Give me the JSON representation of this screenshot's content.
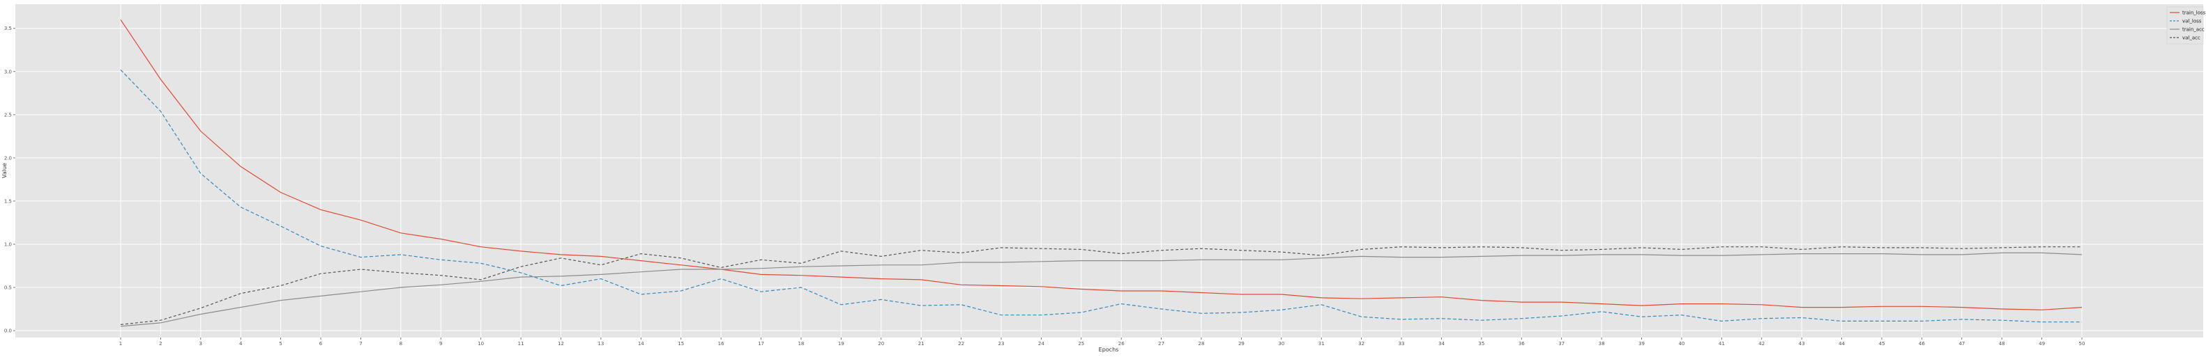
{
  "chart_data": {
    "type": "line",
    "title": "",
    "xlabel": "Epochs",
    "ylabel": "Value",
    "ylim": [
      -0.08,
      3.78
    ],
    "yticks": [
      0.0,
      0.5,
      1.0,
      1.5,
      2.0,
      2.5,
      3.0,
      3.5
    ],
    "ytick_labels": [
      "0.0",
      "0.5",
      "1.0",
      "1.5",
      "2.0",
      "2.5",
      "3.0",
      "3.5"
    ],
    "grid": true,
    "legend_position": "top-right",
    "x": [
      1,
      2,
      3,
      4,
      5,
      6,
      7,
      8,
      9,
      10,
      11,
      12,
      13,
      14,
      15,
      16,
      17,
      18,
      19,
      20,
      21,
      22,
      23,
      24,
      25,
      26,
      27,
      28,
      29,
      30,
      31,
      32,
      33,
      34,
      35,
      36,
      37,
      38,
      39,
      40,
      41,
      42,
      43,
      44,
      45,
      46,
      47,
      48,
      49,
      50
    ],
    "series": [
      {
        "name": "train_loss",
        "color": "#e24a33",
        "dash": "",
        "values": [
          3.6,
          2.91,
          2.31,
          1.9,
          1.6,
          1.4,
          1.28,
          1.13,
          1.06,
          0.97,
          0.92,
          0.88,
          0.86,
          0.81,
          0.76,
          0.71,
          0.65,
          0.64,
          0.62,
          0.6,
          0.59,
          0.53,
          0.52,
          0.51,
          0.48,
          0.46,
          0.46,
          0.44,
          0.42,
          0.42,
          0.38,
          0.37,
          0.38,
          0.39,
          0.35,
          0.33,
          0.33,
          0.31,
          0.29,
          0.31,
          0.31,
          0.3,
          0.27,
          0.27,
          0.28,
          0.28,
          0.27,
          0.25,
          0.24,
          0.27
        ]
      },
      {
        "name": "val_loss",
        "color": "#348abd",
        "dash": "5,3",
        "values": [
          3.02,
          2.54,
          1.82,
          1.43,
          1.21,
          0.98,
          0.85,
          0.88,
          0.82,
          0.78,
          0.67,
          0.52,
          0.6,
          0.42,
          0.46,
          0.6,
          0.45,
          0.5,
          0.3,
          0.36,
          0.29,
          0.3,
          0.18,
          0.18,
          0.21,
          0.31,
          0.25,
          0.2,
          0.21,
          0.24,
          0.3,
          0.16,
          0.13,
          0.14,
          0.12,
          0.14,
          0.17,
          0.22,
          0.16,
          0.18,
          0.11,
          0.14,
          0.15,
          0.11,
          0.11,
          0.11,
          0.13,
          0.12,
          0.1,
          0.1
        ]
      },
      {
        "name": "train_acc",
        "color": "#8c8c8c",
        "dash": "",
        "values": [
          0.05,
          0.09,
          0.19,
          0.27,
          0.35,
          0.4,
          0.45,
          0.5,
          0.53,
          0.57,
          0.62,
          0.63,
          0.65,
          0.68,
          0.71,
          0.71,
          0.72,
          0.74,
          0.75,
          0.76,
          0.76,
          0.79,
          0.79,
          0.8,
          0.81,
          0.81,
          0.81,
          0.82,
          0.82,
          0.82,
          0.84,
          0.86,
          0.85,
          0.85,
          0.86,
          0.87,
          0.87,
          0.88,
          0.88,
          0.87,
          0.87,
          0.88,
          0.89,
          0.89,
          0.89,
          0.88,
          0.88,
          0.9,
          0.9,
          0.88
        ]
      },
      {
        "name": "val_acc",
        "color": "#555555",
        "dash": "4,3",
        "values": [
          0.07,
          0.12,
          0.26,
          0.43,
          0.52,
          0.66,
          0.71,
          0.67,
          0.64,
          0.59,
          0.74,
          0.84,
          0.76,
          0.89,
          0.84,
          0.73,
          0.82,
          0.78,
          0.92,
          0.86,
          0.93,
          0.9,
          0.96,
          0.95,
          0.94,
          0.89,
          0.93,
          0.95,
          0.93,
          0.91,
          0.87,
          0.94,
          0.97,
          0.96,
          0.97,
          0.96,
          0.93,
          0.94,
          0.96,
          0.94,
          0.97,
          0.97,
          0.94,
          0.97,
          0.96,
          0.96,
          0.95,
          0.96,
          0.97,
          0.97
        ]
      }
    ]
  }
}
